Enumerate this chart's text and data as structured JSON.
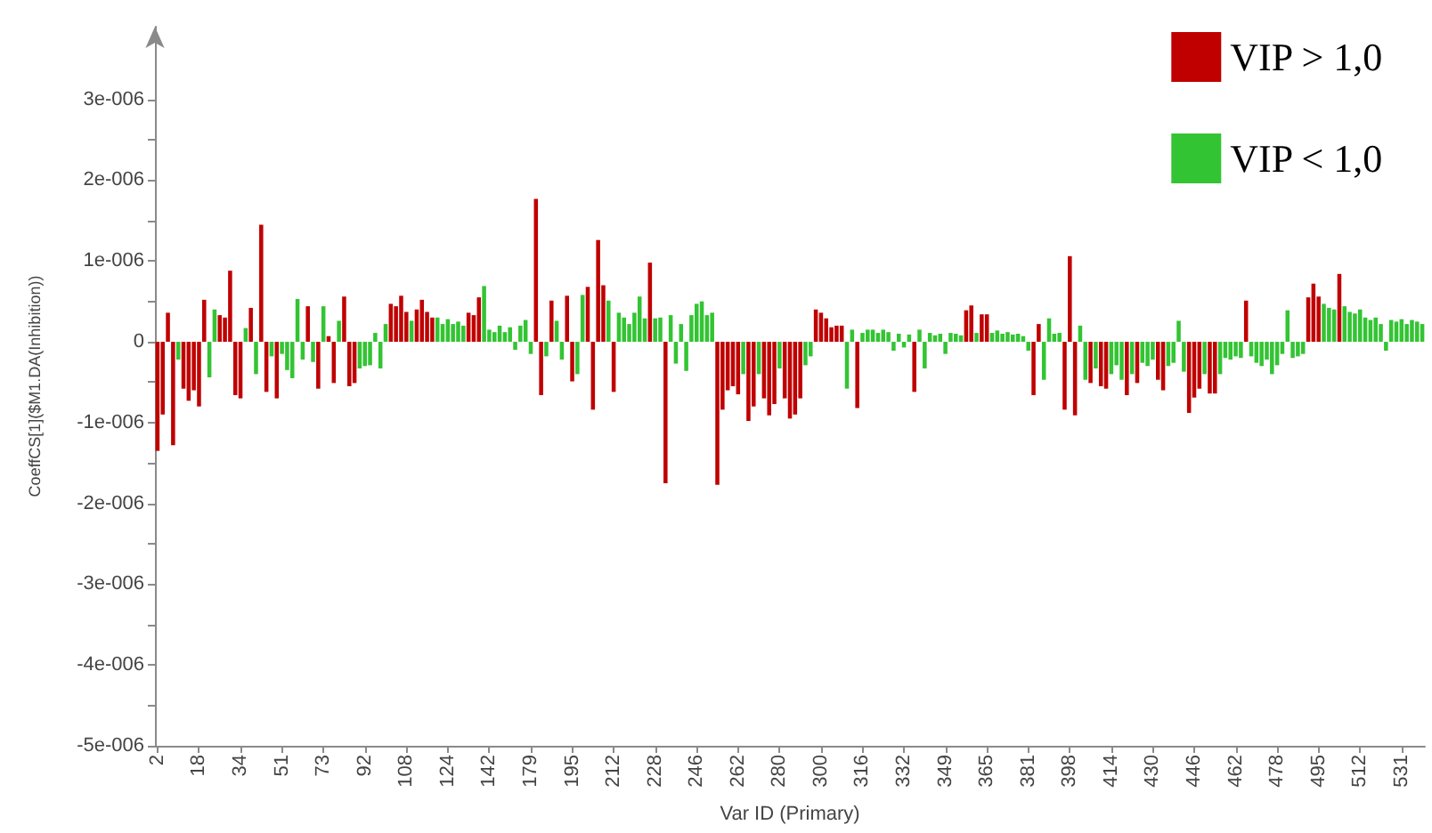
{
  "chart_data": {
    "type": "bar",
    "xlabel": "Var ID (Primary)",
    "ylabel": "CoeffCS[1]($M1.DA(Inhibition))",
    "categories": [
      "2",
      null,
      null,
      null,
      null,
      null,
      null,
      null,
      "18",
      null,
      null,
      null,
      null,
      null,
      null,
      null,
      "34",
      null,
      null,
      null,
      null,
      null,
      null,
      null,
      "51",
      null,
      null,
      null,
      null,
      null,
      null,
      null,
      "73",
      null,
      null,
      null,
      null,
      null,
      null,
      null,
      "92",
      null,
      null,
      null,
      null,
      null,
      null,
      null,
      "108",
      null,
      null,
      null,
      null,
      null,
      null,
      null,
      "124",
      null,
      null,
      null,
      null,
      null,
      null,
      null,
      "142",
      null,
      null,
      null,
      null,
      null,
      null,
      null,
      "179",
      null,
      null,
      null,
      null,
      null,
      null,
      null,
      "195",
      null,
      null,
      null,
      null,
      null,
      null,
      null,
      "212",
      null,
      null,
      null,
      null,
      null,
      null,
      null,
      "228",
      null,
      null,
      null,
      null,
      null,
      null,
      null,
      "246",
      null,
      null,
      null,
      null,
      null,
      null,
      null,
      "262",
      null,
      null,
      null,
      null,
      null,
      null,
      null,
      "280",
      null,
      null,
      null,
      null,
      null,
      null,
      null,
      "300",
      null,
      null,
      null,
      null,
      null,
      null,
      null,
      "316",
      null,
      null,
      null,
      null,
      null,
      null,
      null,
      "332",
      null,
      null,
      null,
      null,
      null,
      null,
      null,
      "349",
      null,
      null,
      null,
      null,
      null,
      null,
      null,
      "365",
      null,
      null,
      null,
      null,
      null,
      null,
      null,
      "381",
      null,
      null,
      null,
      null,
      null,
      null,
      null,
      "398",
      null,
      null,
      null,
      null,
      null,
      null,
      null,
      "414",
      null,
      null,
      null,
      null,
      null,
      null,
      null,
      "430",
      null,
      null,
      null,
      null,
      null,
      null,
      null,
      "446",
      null,
      null,
      null,
      null,
      null,
      null,
      null,
      "462",
      null,
      null,
      null,
      null,
      null,
      null,
      null,
      "478",
      null,
      null,
      null,
      null,
      null,
      null,
      null,
      "495",
      null,
      null,
      null,
      null,
      null,
      null,
      null,
      "512",
      null,
      null,
      null,
      null,
      null,
      null,
      null,
      "531",
      null,
      null,
      null,
      null
    ],
    "series": [
      {
        "name": "VIP > 1,0",
        "color": "#c00000",
        "values": [
          -1.35e-06,
          -9e-07,
          3.6e-07,
          -1.28e-06,
          null,
          -5.8e-07,
          -7.3e-07,
          -6e-07,
          -8e-07,
          5.2e-07,
          null,
          null,
          3.3e-07,
          3e-07,
          8.8e-07,
          -6.6e-07,
          -7e-07,
          null,
          4.2e-07,
          null,
          1.45e-06,
          -6.2e-07,
          null,
          -7e-07,
          null,
          null,
          null,
          null,
          null,
          4.4e-07,
          null,
          -5.8e-07,
          null,
          7e-08,
          -5.1e-07,
          null,
          5.6e-07,
          -5.5e-07,
          -5.1e-07,
          null,
          null,
          null,
          null,
          null,
          null,
          4.7e-07,
          4.4e-07,
          5.7e-07,
          3.7e-07,
          null,
          4e-07,
          5.2e-07,
          3.7e-07,
          3e-07,
          null,
          null,
          null,
          null,
          null,
          null,
          3.6e-07,
          3.3e-07,
          5.5e-07,
          null,
          null,
          null,
          null,
          null,
          null,
          null,
          null,
          null,
          null,
          1.77e-06,
          -6.6e-07,
          null,
          5.1e-07,
          null,
          null,
          5.7e-07,
          -4.9e-07,
          null,
          null,
          6.8e-07,
          -8.4e-07,
          1.26e-06,
          7e-07,
          null,
          -6.2e-07,
          null,
          null,
          null,
          null,
          null,
          null,
          9.8e-07,
          null,
          null,
          -1.75e-06,
          null,
          null,
          null,
          null,
          null,
          null,
          null,
          null,
          null,
          -1.77e-06,
          -8.4e-07,
          -6e-07,
          -5.5e-07,
          -6.5e-07,
          null,
          -9.8e-07,
          -8e-07,
          null,
          -7e-07,
          -9.1e-07,
          -7.7e-07,
          null,
          -7e-07,
          -9.5e-07,
          -9e-07,
          -7e-07,
          null,
          null,
          4e-07,
          3.6e-07,
          2.9e-07,
          1.8e-07,
          2e-07,
          2e-07,
          null,
          null,
          -8.2e-07,
          null,
          null,
          null,
          null,
          null,
          null,
          null,
          null,
          null,
          null,
          -6.2e-07,
          null,
          null,
          null,
          null,
          null,
          null,
          null,
          null,
          null,
          3.9e-07,
          4.5e-07,
          null,
          3.4e-07,
          3.4e-07,
          null,
          null,
          null,
          null,
          null,
          null,
          null,
          null,
          -6.6e-07,
          2.2e-07,
          null,
          null,
          null,
          null,
          -8.4e-07,
          1.06e-06,
          -9.1e-07,
          null,
          null,
          -5.1e-07,
          null,
          -5.5e-07,
          -5.8e-07,
          null,
          null,
          null,
          -6.6e-07,
          null,
          -5.1e-07,
          null,
          null,
          null,
          -4.7e-07,
          -6e-07,
          null,
          null,
          null,
          null,
          -8.8e-07,
          -6.9e-07,
          -5.8e-07,
          null,
          -6.4e-07,
          -6.4e-07,
          null,
          null,
          null,
          null,
          null,
          5.1e-07,
          null,
          null,
          null,
          null,
          null,
          null,
          null,
          null,
          null,
          null,
          null,
          5.5e-07,
          7.2e-07,
          5.6e-07,
          null,
          null,
          null,
          8.4e-07,
          null,
          null,
          null,
          null,
          null,
          null,
          null,
          null,
          null,
          null,
          null,
          null,
          null,
          null,
          null,
          null
        ]
      },
      {
        "name": "VIP < 1,0",
        "color": "#33c433",
        "values": [
          null,
          null,
          null,
          null,
          -2.2e-07,
          null,
          null,
          null,
          null,
          null,
          -4.4e-07,
          4e-07,
          null,
          null,
          null,
          null,
          null,
          1.7e-07,
          null,
          -4e-07,
          null,
          null,
          -1.8e-07,
          null,
          -1.5e-07,
          -3.5e-07,
          -4.5e-07,
          5.3e-07,
          -2.2e-07,
          null,
          -2.5e-07,
          null,
          4.4e-07,
          null,
          null,
          2.6e-07,
          null,
          null,
          null,
          -3.3e-07,
          -3e-07,
          -2.9e-07,
          1.1e-07,
          -3.3e-07,
          2.2e-07,
          null,
          null,
          null,
          null,
          2.6e-07,
          null,
          null,
          null,
          null,
          3e-07,
          2.2e-07,
          2.8e-07,
          2.2e-07,
          2.5e-07,
          2e-07,
          null,
          null,
          null,
          6.9e-07,
          1.5e-07,
          1.2e-07,
          2e-07,
          1.2e-07,
          1.8e-07,
          -1e-07,
          2e-07,
          2.7e-07,
          -1.5e-07,
          null,
          null,
          -1.8e-07,
          null,
          2.6e-07,
          -2.2e-07,
          null,
          null,
          -4e-07,
          5.8e-07,
          null,
          null,
          null,
          null,
          5.1e-07,
          null,
          3.6e-07,
          3e-07,
          2.2e-07,
          3.6e-07,
          5.6e-07,
          2.9e-07,
          null,
          2.9e-07,
          3e-07,
          null,
          3.3e-07,
          -2.7e-07,
          2.2e-07,
          -3.6e-07,
          3.3e-07,
          4.7e-07,
          5e-07,
          3.3e-07,
          3.6e-07,
          null,
          null,
          null,
          null,
          null,
          -4e-07,
          null,
          null,
          -4e-07,
          null,
          null,
          null,
          -3.3e-07,
          null,
          null,
          null,
          null,
          -2.9e-07,
          -1.8e-07,
          null,
          null,
          null,
          null,
          null,
          null,
          -5.8e-07,
          1.5e-07,
          null,
          1.1e-07,
          1.5e-07,
          1.5e-07,
          1.1e-07,
          1.5e-07,
          1.2e-07,
          -1.1e-07,
          1e-07,
          -7e-08,
          9e-08,
          null,
          1.5e-07,
          -3.3e-07,
          1.1e-07,
          8e-08,
          1e-07,
          -1.5e-07,
          1.1e-07,
          1e-07,
          8e-08,
          null,
          null,
          1.1e-07,
          null,
          null,
          1.1e-07,
          1.4e-07,
          1e-07,
          1.2e-07,
          9e-08,
          1e-07,
          7e-08,
          -1.1e-07,
          null,
          null,
          -4.7e-07,
          2.9e-07,
          1e-07,
          1.1e-07,
          null,
          null,
          null,
          2e-07,
          -4.7e-07,
          null,
          -3.3e-07,
          null,
          null,
          -4e-07,
          -2.9e-07,
          -4.7e-07,
          null,
          -4e-07,
          null,
          -2.6e-07,
          -3e-07,
          -2.2e-07,
          null,
          null,
          -3e-07,
          -2.6e-07,
          2.6e-07,
          -3.7e-07,
          null,
          null,
          null,
          -4e-07,
          null,
          null,
          -4e-07,
          -2e-07,
          -2.2e-07,
          -1.8e-07,
          -2e-07,
          null,
          -1.8e-07,
          -2.6e-07,
          -3e-07,
          -2.2e-07,
          -4e-07,
          -2.9e-07,
          -1.5e-07,
          3.9e-07,
          -2e-07,
          -1.8e-07,
          -1.5e-07,
          null,
          null,
          null,
          4.7e-07,
          4.2e-07,
          4e-07,
          null,
          4.4e-07,
          3.7e-07,
          3.5e-07,
          4e-07,
          3e-07,
          2.7e-07,
          3e-07,
          2.2e-07,
          -1.1e-07,
          2.7e-07,
          2.5e-07,
          2.8e-07,
          2.2e-07,
          2.7e-07,
          2.5e-07,
          2.2e-07
        ]
      }
    ],
    "ylim": [
      -5e-06,
      3.9e-06
    ],
    "yticks": [
      {
        "value": -5e-06,
        "label": "-5e-006"
      },
      {
        "value": -4.5e-06,
        "label": null
      },
      {
        "value": -4e-06,
        "label": "-4e-006"
      },
      {
        "value": -3.5e-06,
        "label": null
      },
      {
        "value": -3e-06,
        "label": "-3e-006"
      },
      {
        "value": -2.5e-06,
        "label": null
      },
      {
        "value": -2e-06,
        "label": "-2e-006"
      },
      {
        "value": -1.5e-06,
        "label": null
      },
      {
        "value": -1e-06,
        "label": "-1e-006"
      },
      {
        "value": -5e-07,
        "label": null
      },
      0,
      {
        "value": 5e-07,
        "label": null
      },
      {
        "value": 1e-06,
        "label": "1e-006"
      },
      {
        "value": 1.5e-06,
        "label": null
      },
      {
        "value": 2e-06,
        "label": "2e-006"
      },
      {
        "value": 2.5e-06,
        "label": null
      },
      {
        "value": 3e-06,
        "label": "3e-006"
      }
    ],
    "legend": "top right",
    "grid": false
  }
}
